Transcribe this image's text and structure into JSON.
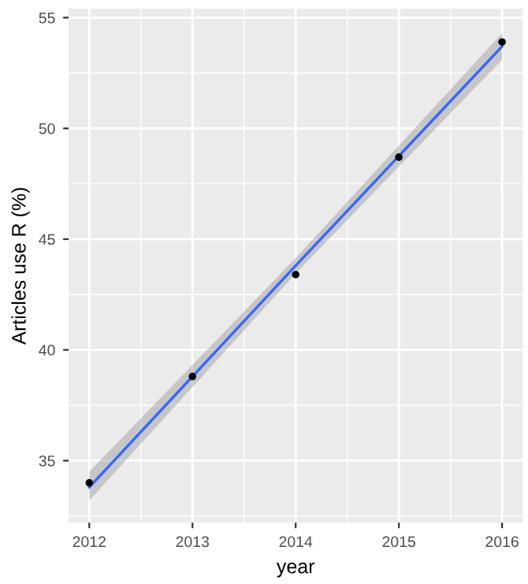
{
  "chart_data": {
    "type": "scatter",
    "xlabel": "year",
    "ylabel": "Articles use R (%)",
    "series": [
      {
        "marker": "circle",
        "color": "#000000",
        "x": [
          2012,
          2013,
          2014,
          2015,
          2016
        ],
        "values": [
          34.0,
          38.8,
          43.4,
          48.7,
          53.9
        ]
      },
      {
        "type": "line",
        "color": "#3366ff",
        "x": [
          2012,
          2014,
          2016
        ],
        "values": [
          33.8,
          43.8,
          53.7
        ],
        "lower": [
          33.2,
          43.45,
          53.1
        ],
        "upper": [
          34.5,
          44.15,
          54.3
        ]
      }
    ],
    "xlim": [
      2011.8,
      2016.2
    ],
    "xticks": [
      2012,
      2013,
      2014,
      2015,
      2016
    ],
    "ylim": [
      32.2,
      55.4
    ],
    "yticks": [
      35,
      40,
      45,
      50,
      55
    ],
    "grid": true
  }
}
